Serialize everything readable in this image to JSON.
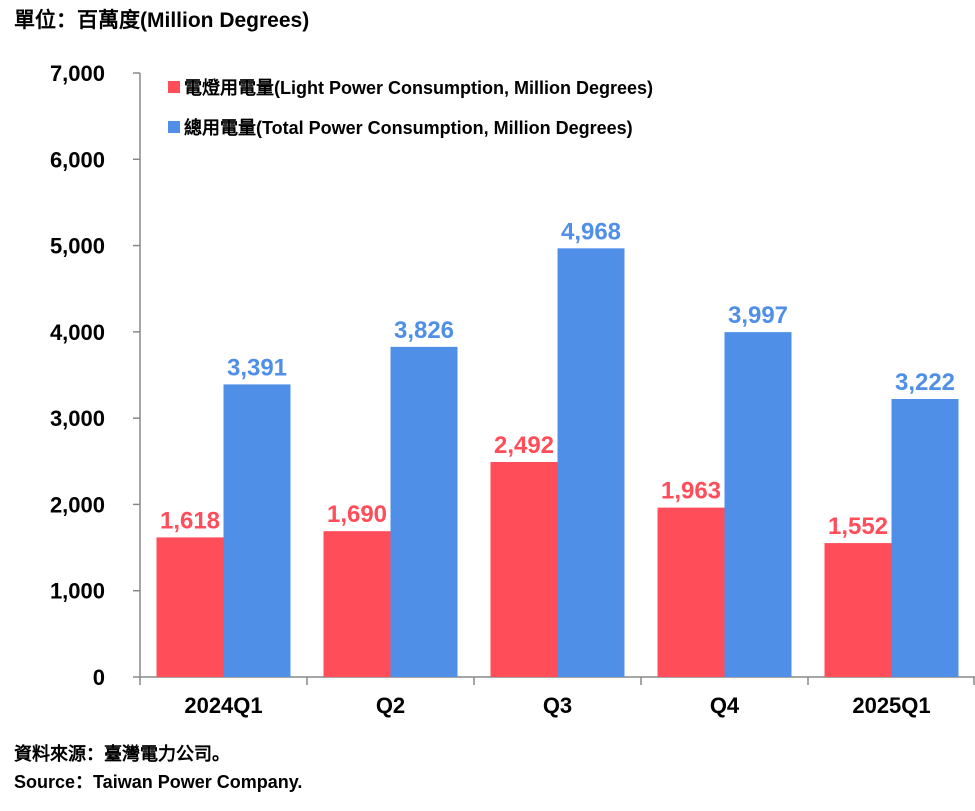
{
  "unit_label": "單位：百萬度(Million Degrees)",
  "source_zh": "資料來源：臺灣電力公司。",
  "source_en": "Source：Taiwan Power Company.",
  "chart_data": {
    "type": "bar",
    "title": "",
    "xlabel": "",
    "ylabel": "單位：百萬度(Million Degrees)",
    "categories": [
      "2024Q1",
      "Q2",
      "Q3",
      "Q4",
      "2025Q1"
    ],
    "ylim": [
      0,
      7000
    ],
    "yticks": [
      0,
      1000,
      2000,
      3000,
      4000,
      5000,
      6000,
      7000
    ],
    "ytick_labels": [
      "0",
      "1,000",
      "2,000",
      "3,000",
      "4,000",
      "5,000",
      "6,000",
      "7,000"
    ],
    "legend_position": "top-left",
    "series": [
      {
        "name": "電燈用電量(Light Power Consumption, Million Degrees)",
        "color": "#ff4d5a",
        "values": [
          1618,
          1690,
          2492,
          1963,
          1552
        ],
        "labels": [
          "1,618",
          "1,690",
          "2,492",
          "1,963",
          "1,552"
        ]
      },
      {
        "name": "總用電量(Total Power Consumption, Million Degrees)",
        "color": "#4f8fe8",
        "values": [
          3391,
          3826,
          4968,
          3997,
          3222
        ],
        "labels": [
          "3,391",
          "3,826",
          "4,968",
          "3,997",
          "3,222"
        ]
      }
    ]
  }
}
